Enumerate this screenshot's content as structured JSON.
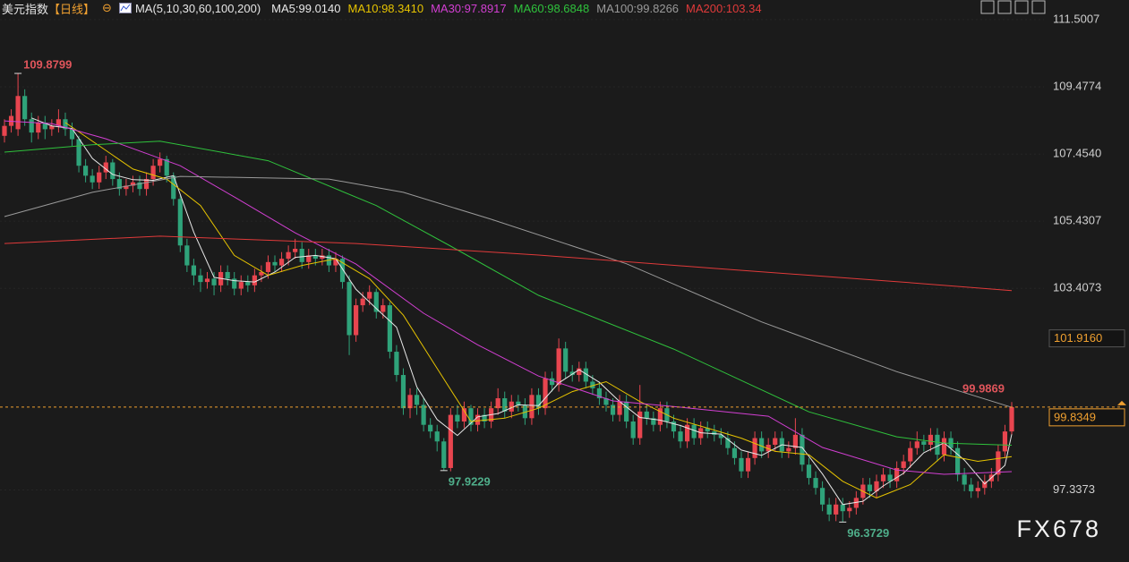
{
  "chart_data": {
    "type": "candlestick",
    "title": "美元指数",
    "period": "【日线】",
    "ma_settings": "MA(5,10,30,60,100,200)",
    "up_color": "#e8454f",
    "down_color": "#2fa37a",
    "open": [
      108.0,
      108.3,
      108.2,
      109.2,
      108.5,
      108.1,
      108.4,
      108.2,
      108.3,
      108.5,
      108.2,
      107.9,
      107.1,
      106.8,
      106.6,
      106.9,
      107.2,
      106.7,
      106.4,
      106.5,
      106.6,
      106.4,
      106.7,
      107.1,
      107.3,
      106.8,
      106.1,
      104.7,
      104.1,
      103.8,
      103.6,
      103.7,
      103.5,
      103.9,
      103.7,
      103.4,
      103.6,
      103.5,
      103.8,
      103.9,
      104.2,
      104.1,
      104.3,
      104.5,
      104.6,
      104.2,
      104.4,
      104.3,
      104.4,
      104.1,
      104.3,
      103.6,
      102.0,
      102.9,
      103.1,
      103.3,
      102.7,
      102.9,
      101.5,
      100.8,
      99.8,
      100.2,
      99.9,
      99.3,
      99.1,
      98.8,
      98.0,
      99.6,
      99.4,
      99.8,
      99.3,
      99.6,
      99.4,
      99.8,
      100.1,
      99.7,
      100.0,
      99.9,
      99.5,
      100.2,
      99.8,
      100.7,
      100.5,
      101.6,
      100.9,
      100.8,
      101.0,
      100.6,
      100.4,
      100.1,
      99.9,
      99.6,
      100.0,
      99.4,
      98.9,
      99.7,
      99.5,
      99.3,
      99.8,
      99.4,
      99.1,
      98.8,
      99.3,
      98.9,
      99.2,
      99.1,
      99.0,
      98.9,
      98.6,
      98.3,
      97.9,
      98.3,
      98.9,
      98.5,
      98.7,
      98.9,
      98.5,
      98.6,
      99.0,
      98.1,
      97.7,
      97.4,
      96.9,
      96.6,
      96.9,
      96.7,
      96.8,
      97.1,
      97.5,
      97.3,
      97.6,
      97.8,
      97.6,
      98.0,
      98.2,
      98.6,
      98.8,
      98.7,
      99.0,
      98.4,
      98.9,
      98.6,
      97.8,
      97.5,
      97.3,
      97.4,
      97.6,
      97.8,
      98.5,
      99.1
    ],
    "high": [
      108.5,
      108.8,
      109.8799,
      109.4,
      108.7,
      108.6,
      108.6,
      108.5,
      108.8,
      108.7,
      108.4,
      108.0,
      107.3,
      107.0,
      107.1,
      107.4,
      107.3,
      106.9,
      106.7,
      106.8,
      106.8,
      106.9,
      107.3,
      107.5,
      107.4,
      106.9,
      106.2,
      104.9,
      104.3,
      104.0,
      103.9,
      103.9,
      104.1,
      104.1,
      103.9,
      103.8,
      103.8,
      104.0,
      104.1,
      104.4,
      104.4,
      104.5,
      104.7,
      104.9,
      104.8,
      104.6,
      104.6,
      104.6,
      104.6,
      104.5,
      104.4,
      103.8,
      103.1,
      103.3,
      103.5,
      103.4,
      103.1,
      103.0,
      101.7,
      101.0,
      100.4,
      100.4,
      100.1,
      99.5,
      99.3,
      98.9,
      99.8,
      99.9,
      100.0,
      99.9,
      99.8,
      99.8,
      100.0,
      100.4,
      100.3,
      100.2,
      100.2,
      100.1,
      100.4,
      100.4,
      100.9,
      100.9,
      101.9,
      101.8,
      101.1,
      101.2,
      101.2,
      100.8,
      100.6,
      100.3,
      100.1,
      100.2,
      100.2,
      99.6,
      100.5,
      99.9,
      99.7,
      100.0,
      100.0,
      99.6,
      99.3,
      99.5,
      99.5,
      99.4,
      99.4,
      99.3,
      99.2,
      99.1,
      98.8,
      98.5,
      98.5,
      99.1,
      99.1,
      98.9,
      99.1,
      99.1,
      98.8,
      99.5,
      99.2,
      98.3,
      97.9,
      97.6,
      97.1,
      97.1,
      97.1,
      97.0,
      97.3,
      97.7,
      97.7,
      97.8,
      98.0,
      98.0,
      98.2,
      98.4,
      98.8,
      99.1,
      99.0,
      99.2,
      99.2,
      99.1,
      99.1,
      98.8,
      98.0,
      97.7,
      97.6,
      97.8,
      98.0,
      98.7,
      99.3,
      99.9869
    ],
    "low": [
      107.8,
      108.1,
      108.0,
      108.3,
      107.8,
      107.9,
      107.9,
      108.0,
      108.1,
      108.0,
      107.7,
      106.9,
      106.6,
      106.4,
      106.4,
      106.7,
      106.5,
      106.2,
      106.2,
      106.3,
      106.2,
      106.2,
      106.5,
      106.9,
      106.6,
      105.9,
      104.5,
      103.9,
      103.5,
      103.3,
      103.4,
      103.2,
      103.3,
      103.5,
      103.2,
      103.2,
      103.3,
      103.3,
      103.6,
      103.7,
      103.9,
      103.9,
      104.1,
      104.3,
      104.0,
      104.0,
      104.1,
      104.1,
      103.9,
      103.9,
      103.4,
      101.4,
      101.8,
      102.7,
      102.9,
      102.5,
      102.5,
      101.3,
      100.6,
      99.6,
      99.5,
      99.6,
      99.1,
      98.9,
      98.5,
      97.9229,
      97.9,
      99.2,
      99.2,
      99.1,
      99.1,
      99.2,
      99.2,
      99.6,
      99.5,
      99.5,
      99.7,
      99.3,
      99.3,
      99.6,
      99.6,
      100.3,
      100.3,
      100.7,
      100.6,
      100.6,
      100.4,
      100.2,
      99.9,
      99.7,
      99.4,
      99.4,
      99.2,
      98.7,
      98.7,
      99.3,
      99.1,
      99.1,
      99.2,
      98.9,
      98.6,
      98.6,
      98.7,
      98.7,
      98.9,
      98.8,
      98.7,
      98.4,
      98.1,
      97.7,
      97.7,
      98.1,
      98.3,
      98.3,
      98.5,
      98.3,
      98.3,
      98.4,
      97.9,
      97.5,
      97.2,
      96.7,
      96.4,
      96.4,
      96.3729,
      96.5,
      96.6,
      96.9,
      97.1,
      97.1,
      97.4,
      97.4,
      97.4,
      97.8,
      98.0,
      98.4,
      98.5,
      98.5,
      98.2,
      98.2,
      98.4,
      97.6,
      97.3,
      97.1,
      97.1,
      97.2,
      97.4,
      97.6,
      98.3,
      99.0
    ],
    "close": [
      108.3,
      108.6,
      109.2,
      108.5,
      108.1,
      108.4,
      108.2,
      108.3,
      108.5,
      108.2,
      107.9,
      107.1,
      106.8,
      106.6,
      106.9,
      107.2,
      106.7,
      106.4,
      106.5,
      106.6,
      106.4,
      106.7,
      107.1,
      107.3,
      106.8,
      106.1,
      104.7,
      104.1,
      103.8,
      103.6,
      103.7,
      103.5,
      103.9,
      103.7,
      103.4,
      103.6,
      103.5,
      103.8,
      103.9,
      104.2,
      104.1,
      104.3,
      104.5,
      104.6,
      104.2,
      104.4,
      104.3,
      104.4,
      104.1,
      104.3,
      103.6,
      102.0,
      102.9,
      103.1,
      103.3,
      102.7,
      102.9,
      101.5,
      100.8,
      99.8,
      100.2,
      99.9,
      99.3,
      99.1,
      98.8,
      98.0,
      99.6,
      99.4,
      99.8,
      99.3,
      99.6,
      99.4,
      99.8,
      100.1,
      99.7,
      100.0,
      99.9,
      99.5,
      100.2,
      99.8,
      100.7,
      100.5,
      101.6,
      100.9,
      100.8,
      101.0,
      100.6,
      100.4,
      100.1,
      99.9,
      99.6,
      100.0,
      99.4,
      98.9,
      99.7,
      99.5,
      99.3,
      99.8,
      99.4,
      99.1,
      98.8,
      99.3,
      98.9,
      99.2,
      99.1,
      99.0,
      98.9,
      98.6,
      98.3,
      97.9,
      98.3,
      98.9,
      98.5,
      98.7,
      98.9,
      98.5,
      98.6,
      99.0,
      98.1,
      97.7,
      97.4,
      96.9,
      96.6,
      96.9,
      96.7,
      96.8,
      97.1,
      97.5,
      97.3,
      97.6,
      97.8,
      97.6,
      98.0,
      98.2,
      98.6,
      98.8,
      98.7,
      99.0,
      98.4,
      98.9,
      98.6,
      97.8,
      97.5,
      97.3,
      97.4,
      97.6,
      97.8,
      98.5,
      99.1,
      99.8349
    ],
    "series": [
      {
        "label": "MA5:99.0140",
        "color": "#e8e8e8",
        "x": [
          4,
          7,
          10,
          13,
          16,
          19,
          22,
          25,
          28,
          31,
          34,
          37,
          40,
          43,
          46,
          49,
          52,
          55,
          58,
          61,
          64,
          67,
          70,
          73,
          76,
          79,
          82,
          85,
          88,
          91,
          94,
          97,
          100,
          103,
          106,
          109,
          112,
          115,
          118,
          121,
          124,
          127,
          130,
          133,
          136,
          139,
          142,
          145,
          148,
          149
        ],
        "values": [
          108.54,
          108.3,
          108.22,
          107.32,
          106.84,
          106.68,
          106.66,
          106.8,
          105.1,
          103.74,
          103.64,
          103.6,
          103.9,
          104.34,
          104.4,
          104.3,
          103.38,
          102.8,
          102.24,
          100.44,
          99.46,
          98.98,
          99.54,
          99.64,
          99.9,
          99.88,
          100.56,
          100.96,
          100.58,
          100.0,
          99.52,
          99.44,
          99.28,
          99.06,
          99.02,
          98.54,
          98.38,
          98.7,
          98.62,
          97.82,
          96.9,
          97.0,
          97.46,
          97.84,
          98.46,
          98.76,
          98.24,
          97.52,
          98.08,
          99.014
        ]
      },
      {
        "label": "MA10:98.3410",
        "color": "#e6c300",
        "x": [
          9,
          14,
          19,
          24,
          29,
          34,
          39,
          44,
          49,
          54,
          59,
          64,
          69,
          74,
          79,
          84,
          89,
          94,
          99,
          104,
          109,
          114,
          119,
          124,
          129,
          134,
          139,
          144,
          149
        ],
        "values": [
          108.4,
          107.7,
          107.0,
          106.7,
          105.9,
          104.4,
          103.8,
          104.1,
          104.3,
          103.7,
          102.6,
          101.0,
          99.4,
          99.5,
          99.8,
          100.3,
          100.6,
          100.0,
          99.5,
          99.2,
          98.9,
          98.5,
          98.4,
          97.6,
          97.1,
          97.5,
          98.4,
          98.2,
          98.341
        ]
      },
      {
        "label": "MA30:97.8917",
        "color": "#d23fd2",
        "x": [
          0,
          7,
          15,
          26,
          34,
          43,
          52,
          62,
          70,
          79,
          90,
          100,
          113,
          121,
          132,
          139,
          149
        ],
        "values": [
          108.45,
          108.37,
          107.91,
          107.1,
          106.16,
          105.08,
          104.14,
          102.66,
          101.71,
          100.77,
          100.02,
          99.83,
          99.56,
          98.62,
          97.94,
          97.81,
          97.8917
        ]
      },
      {
        "label": "MA60:98.6848",
        "color": "#2fc23c",
        "x": [
          0,
          13,
          23,
          39,
          55,
          66,
          79,
          99,
          119,
          132,
          139,
          149
        ],
        "values": [
          107.51,
          107.73,
          107.84,
          107.25,
          105.9,
          104.68,
          103.2,
          101.58,
          99.69,
          98.94,
          98.75,
          98.6848
        ]
      },
      {
        "label": "MA100:99.8266",
        "color": "#9a9a9a",
        "x": [
          0,
          13,
          26,
          48,
          59,
          72,
          92,
          112,
          132,
          149
        ],
        "values": [
          105.57,
          106.3,
          106.78,
          106.7,
          106.3,
          105.49,
          104.15,
          102.4,
          100.9,
          99.8266
        ]
      },
      {
        "label": "MA200:103.34",
        "color": "#e03a3a",
        "x": [
          0,
          23,
          52,
          79,
          105,
          132,
          149
        ],
        "values": [
          104.76,
          104.98,
          104.76,
          104.41,
          104.01,
          103.61,
          103.34
        ]
      }
    ],
    "ylim": [
      95.17,
      112.09
    ],
    "yticks": [
      111.5007,
      109.4774,
      {
        "value": 107.454,
        "label": "107.4540"
      },
      105.4307,
      103.4073,
      97.3373
    ],
    "grid": true,
    "annotations": [
      {
        "candle": 2,
        "value": 109.8799,
        "side": "above",
        "color": "#e0555b"
      },
      {
        "candle": 65,
        "value": 97.9229,
        "side": "below",
        "color": "#4fae8a"
      },
      {
        "candle": 124,
        "value": 96.3729,
        "side": "below",
        "color": "#4fae8a"
      },
      {
        "candle": 149,
        "value": 99.9869,
        "side": "left",
        "color": "#e0555b"
      }
    ],
    "current_price": {
      "value": 99.8349,
      "color": "#f0a030"
    },
    "marker_price": {
      "value": 101.916,
      "label": "101.9160",
      "color": "#f0a030"
    },
    "watermark": "FX678"
  }
}
